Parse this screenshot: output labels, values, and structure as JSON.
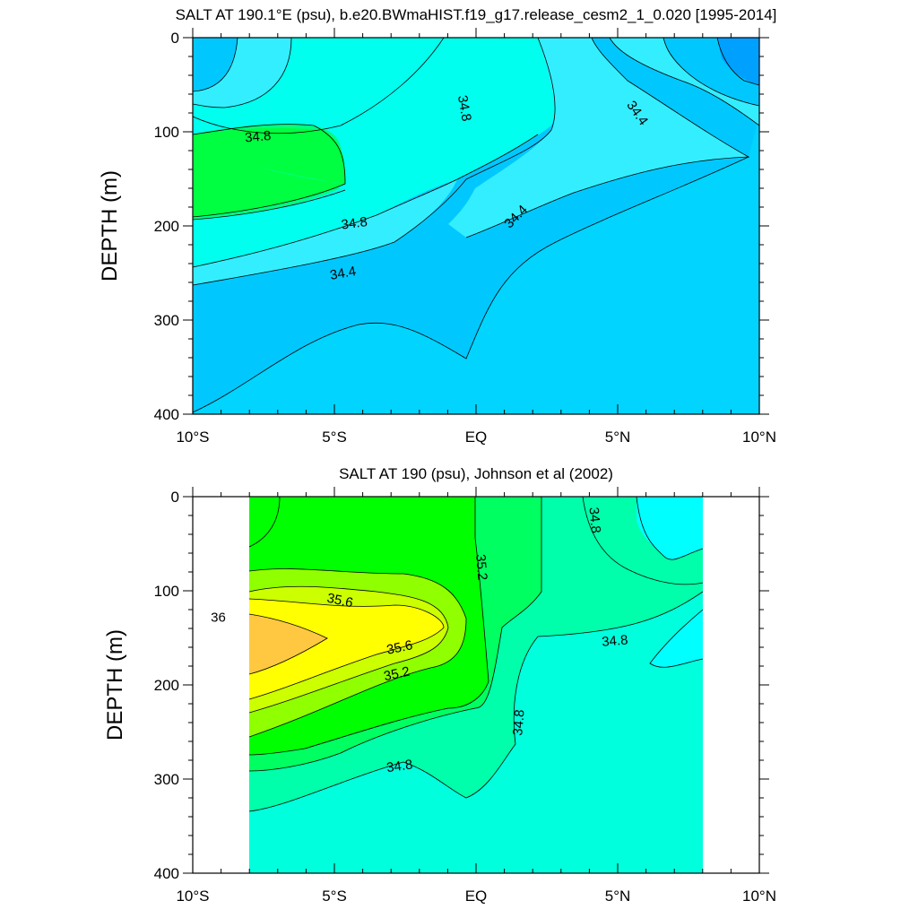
{
  "chart_data": [
    {
      "type": "contour",
      "title": "SALT AT 190.1°E (psu), b.e20.BWmaHIST.f19_g17.release_cesm2_1_0.020 [1995-2014]",
      "xlabel": "",
      "ylabel": "DEPTH (m)",
      "xlim": [
        -10,
        10
      ],
      "ylim": [
        400,
        0
      ],
      "x_ticks": [
        {
          "value": -10,
          "label": "10°S"
        },
        {
          "value": -5,
          "label": "5°S"
        },
        {
          "value": 0,
          "label": "EQ"
        },
        {
          "value": 5,
          "label": "5°N"
        },
        {
          "value": 10,
          "label": "10°N"
        }
      ],
      "y_ticks": [
        {
          "value": 0,
          "label": "0"
        },
        {
          "value": 100,
          "label": "100"
        },
        {
          "value": 200,
          "label": "200"
        },
        {
          "value": 300,
          "label": "300"
        },
        {
          "value": 400,
          "label": "400"
        }
      ],
      "colors": {
        "background": "#00d4ff",
        "lvl_34_0": "#00a0ff",
        "lvl_34_2": "#00c8ff",
        "lvl_34_4": "#33eeff",
        "lvl_34_6": "#00ffee",
        "lvl_34_8": "#00ffc0",
        "lvl_35_0": "#00ff80",
        "lvl_35_2": "#00ff40"
      },
      "contour_labels": [
        {
          "text": "34.8",
          "lon": -7.7,
          "depth": 105,
          "angle": -5
        },
        {
          "text": "34.8",
          "lon": -4.3,
          "depth": 197,
          "angle": -7
        },
        {
          "text": "34.4",
          "lon": -4.7,
          "depth": 250,
          "angle": -10
        },
        {
          "text": "34.8",
          "lon": -0.4,
          "depth": 75,
          "angle": 80
        },
        {
          "text": "34.4",
          "lon": 5.7,
          "depth": 80,
          "angle": 55
        },
        {
          "text": "34.4",
          "lon": 1.4,
          "depth": 190,
          "angle": -45
        }
      ]
    },
    {
      "type": "contour",
      "title": "SALT AT 190 (psu), Johnson et al (2002)",
      "xlabel": "",
      "ylabel": "DEPTH (m)",
      "xlim": [
        -10,
        10
      ],
      "ylim": [
        400,
        0
      ],
      "data_lon_range": [
        -8,
        8
      ],
      "x_ticks": [
        {
          "value": -10,
          "label": "10°S"
        },
        {
          "value": -5,
          "label": "5°S"
        },
        {
          "value": 0,
          "label": "EQ"
        },
        {
          "value": 5,
          "label": "5°N"
        },
        {
          "value": 10,
          "label": "10°N"
        }
      ],
      "y_ticks": [
        {
          "value": 0,
          "label": "0"
        },
        {
          "value": 100,
          "label": "100"
        },
        {
          "value": 200,
          "label": "200"
        },
        {
          "value": 300,
          "label": "300"
        },
        {
          "value": 400,
          "label": "400"
        }
      ],
      "colors": {
        "background": "#00ffdd",
        "lvl_34_6": "#00ffff",
        "lvl_34_8": "#00ffaa",
        "lvl_35_0": "#00ff60",
        "lvl_35_2": "#00ff00",
        "lvl_35_4": "#90ff00",
        "lvl_35_6": "#ccff00",
        "lvl_35_8": "#ffff00",
        "lvl_36_0": "#ffc840"
      },
      "contour_labels": [
        {
          "text": "34.8",
          "lon": 4.2,
          "depth": 25,
          "angle": 85
        },
        {
          "text": "35.2",
          "lon": 0.2,
          "depth": 75,
          "angle": 85
        },
        {
          "text": "35.6",
          "lon": -4.8,
          "depth": 110,
          "angle": 12
        },
        {
          "text": "36",
          "lon": -9.1,
          "depth": 128,
          "angle": 0
        },
        {
          "text": "35.6",
          "lon": -2.7,
          "depth": 160,
          "angle": -12
        },
        {
          "text": "35.2",
          "lon": -2.8,
          "depth": 188,
          "angle": -12
        },
        {
          "text": "34.8",
          "lon": 4.9,
          "depth": 153,
          "angle": -5
        },
        {
          "text": "34.8",
          "lon": 1.5,
          "depth": 240,
          "angle": -85
        },
        {
          "text": "34.8",
          "lon": -2.7,
          "depth": 286,
          "angle": -8
        }
      ]
    }
  ]
}
